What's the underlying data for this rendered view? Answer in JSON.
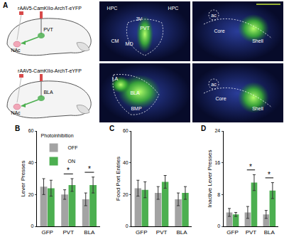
{
  "panel_a": {
    "label": "A",
    "schematics": [
      {
        "virus": "rAAV5-CamKIIα-ArchT-eYFP",
        "regions": [
          "NAc",
          "PVT"
        ]
      },
      {
        "virus": "rAAV5-CamKIIα-ArchT-eYFP",
        "regions": [
          "NAc",
          "BLA"
        ]
      }
    ],
    "images": [
      {
        "labels": [
          "HPC",
          "HPC",
          "3V",
          "PVT",
          "CM",
          "MD"
        ]
      },
      {
        "labels": [
          "ac",
          "Core",
          "Shell"
        ]
      },
      {
        "labels": [
          "LA",
          "BLA",
          "BMP"
        ]
      },
      {
        "labels": [
          "ac",
          "Core",
          "Shell"
        ]
      }
    ]
  },
  "chart_data": [
    {
      "type": "bar",
      "panel": "B",
      "y_label": "Lever Presses",
      "categories": [
        "GFP",
        "PVT",
        "BLA"
      ],
      "series": [
        {
          "name": "OFF",
          "color": "#a3a3a3",
          "values": [
            25,
            20,
            17
          ],
          "errors": [
            5,
            3,
            4
          ]
        },
        {
          "name": "ON",
          "color": "#4caf50",
          "values": [
            24,
            26,
            26
          ],
          "errors": [
            5,
            4,
            5
          ]
        }
      ],
      "ylim": [
        0,
        60
      ],
      "yticks": [
        0,
        20,
        40,
        60
      ],
      "annotations": [
        {
          "category": "PVT",
          "text": "*"
        },
        {
          "category": "BLA",
          "text": "*"
        }
      ],
      "legend": "top left",
      "legend_title": "Photoinhibition"
    },
    {
      "type": "bar",
      "panel": "C",
      "y_label": "Food Port Entries",
      "categories": [
        "GFP",
        "PVT",
        "BLA"
      ],
      "series": [
        {
          "name": "OFF",
          "color": "#a3a3a3",
          "values": [
            24,
            21,
            17
          ],
          "errors": [
            5,
            4,
            4
          ]
        },
        {
          "name": "ON",
          "color": "#4caf50",
          "values": [
            23,
            28,
            21
          ],
          "errors": [
            5,
            4,
            4
          ]
        }
      ],
      "ylim": [
        0,
        60
      ],
      "yticks": [
        0,
        20,
        40,
        60
      ]
    },
    {
      "type": "bar",
      "panel": "D",
      "y_label": "Inactive Lever Presses",
      "categories": [
        "GFP",
        "PVT",
        "BLA"
      ],
      "series": [
        {
          "name": "OFF",
          "color": "#a3a3a3",
          "values": [
            3.5,
            3.5,
            3
          ],
          "errors": [
            1,
            1.5,
            1
          ]
        },
        {
          "name": "ON",
          "color": "#4caf50",
          "values": [
            3,
            11,
            9
          ],
          "errors": [
            0.5,
            2,
            2
          ]
        }
      ],
      "ylim": [
        0,
        24
      ],
      "yticks": [
        0,
        8,
        16,
        24
      ],
      "annotations": [
        {
          "category": "PVT",
          "text": "*"
        },
        {
          "category": "BLA",
          "text": "*"
        }
      ]
    }
  ]
}
